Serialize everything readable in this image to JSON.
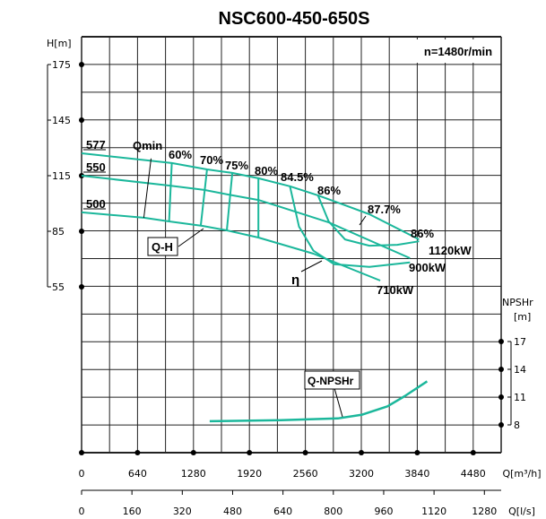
{
  "chart_data": {
    "type": "line",
    "title": "NSC600-450-650S",
    "speed_label": "n=1480r/min",
    "curve_color": "#1bb79b",
    "grid": true,
    "x_axis": {
      "label": "Q[m³/h]",
      "range": [
        0,
        4800
      ],
      "ticks": [
        0,
        640,
        1280,
        1920,
        2560,
        3200,
        3840,
        4480
      ]
    },
    "x2_axis": {
      "label": "Q[l/s]",
      "ticks": [
        0,
        160,
        320,
        480,
        640,
        800,
        960,
        1120,
        1280
      ]
    },
    "y_axis": {
      "label": "H[m]",
      "ticks": [
        175,
        145,
        115,
        85,
        55
      ]
    },
    "y2_axis": {
      "label_line1": "NPSHr",
      "label_line2": "[m]",
      "ticks": [
        17,
        14,
        11,
        8
      ]
    },
    "qh_series": [
      {
        "name": "577",
        "points": [
          [
            0,
            127.1
          ],
          [
            1032,
            121.8
          ],
          [
            1435,
            118.4
          ],
          [
            1724,
            116.5
          ],
          [
            2023,
            113.6
          ],
          [
            2384,
            109.3
          ],
          [
            2704,
            104.4
          ],
          [
            3292,
            94.2
          ],
          [
            3860,
            80.6
          ]
        ]
      },
      {
        "name": "550",
        "points": [
          [
            0,
            115
          ],
          [
            1001,
            109.7
          ],
          [
            1404,
            107.3
          ],
          [
            1682,
            104.8
          ],
          [
            2023,
            101.9
          ],
          [
            2250,
            98.5
          ],
          [
            2827,
            89.8
          ],
          [
            3757,
            70.5
          ]
        ]
      },
      {
        "name": "500",
        "points": [
          [
            0,
            95.2
          ],
          [
            712,
            92.3
          ],
          [
            1001,
            90.3
          ],
          [
            1383,
            87.9
          ],
          [
            1662,
            85.5
          ],
          [
            2023,
            81.6
          ],
          [
            2652,
            72.9
          ],
          [
            3416,
            58.4
          ]
        ]
      }
    ],
    "efficiency_lines": [
      {
        "name": "60%",
        "points": [
          [
            1032,
            121.8
          ],
          [
            1001,
            90.3
          ]
        ]
      },
      {
        "name": "70%",
        "points": [
          [
            1435,
            118.4
          ],
          [
            1363,
            87.9
          ]
        ]
      },
      {
        "name": "75%",
        "points": [
          [
            1724,
            116.5
          ],
          [
            1662,
            85.5
          ]
        ]
      },
      {
        "name": "80%",
        "points": [
          [
            2023,
            113.6
          ],
          [
            2023,
            81.6
          ]
        ]
      },
      {
        "name": "84.5%",
        "points": [
          [
            2384,
            109.3
          ],
          [
            2487,
            87.5
          ],
          [
            2652,
            74.5
          ],
          [
            2889,
            67.2
          ],
          [
            3292,
            65.8
          ],
          [
            3757,
            68.2
          ]
        ]
      },
      {
        "name": "86%",
        "points": [
          [
            2704,
            104.4
          ],
          [
            2827,
            90.3
          ],
          [
            3013,
            80.6
          ],
          [
            3292,
            77.2
          ],
          [
            3612,
            77.7
          ],
          [
            3860,
            79.6
          ]
        ]
      }
    ],
    "qmin_line": {
      "name": "Qmin",
      "points": [
        [
          795,
          124.3
        ],
        [
          712,
          92.3
        ]
      ]
    },
    "curve_labels": {
      "eta": "η",
      "qh": "Q-H",
      "best_eff": "87.7%",
      "end_eff": "86%"
    },
    "power_labels": [
      "1120kW",
      "900kW",
      "710kW"
    ],
    "npshr": {
      "name": "Q-NPSHr",
      "points": [
        [
          1466,
          8.4
        ],
        [
          2281,
          8.5
        ],
        [
          2931,
          8.7
        ],
        [
          3210,
          9.1
        ],
        [
          3499,
          10.0
        ],
        [
          3695,
          11.1
        ],
        [
          3953,
          12.7
        ]
      ]
    }
  }
}
